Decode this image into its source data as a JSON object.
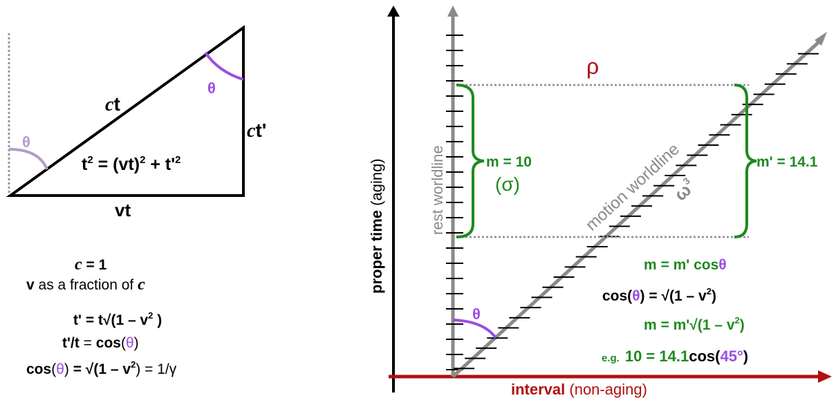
{
  "triangle": {
    "c_symbol": "c",
    "hypotenuse_t": "t",
    "vertical_t": "t'",
    "base_label": "vt",
    "angle_top": "θ",
    "angle_bottom": "θ",
    "equation_lhs": "t",
    "equation_vt": "(vt)",
    "equation_plus": " + t'",
    "equation_eq": " = ",
    "sup2": "2"
  },
  "formulas": {
    "c_eq": "c",
    "c_val": " = 1",
    "v_label": "v",
    "v_text": " as a fraction of ",
    "v_c": "c",
    "t_prime_lhs": "t'",
    "t_prime_rhs": " = t√(1 – v",
    "close": ")",
    "tt_lhs": "t'/t",
    "tt_eq": " = ",
    "cos": "cos",
    "open": "(",
    "theta": "θ",
    "cos_close": ")",
    "cos_rhs": " = √(1 – v",
    "gamma": ") = 1/γ"
  },
  "spacetime": {
    "rho": "ρ",
    "rest_worldline": "rest worldline",
    "motion_worldline": "motion worldline",
    "omega": "ω",
    "omega_sub": "3",
    "m_label": "m = 10",
    "sigma": "(σ)",
    "m_prime_label": "m' = 14.1",
    "theta": "θ",
    "y_axis_bold": "proper time",
    "y_axis_normal": " (aging)",
    "x_axis_bold": "interval",
    "x_axis_normal": " (non-aging)",
    "eq1": "m = m' cos",
    "eq1_theta": "θ",
    "eq2_a": "cos(",
    "eq2_theta": "θ",
    "eq2_b": ") = √(1 – v",
    "eq2_c": ")",
    "eq3": "m = m'√(1 – v",
    "eq3_c": ")",
    "eg": "e.g.",
    "eg_a": "10 = 14.1",
    "eg_cos": "cos(",
    "eg_deg": "45°",
    "eg_close": ")",
    "sup2": "2"
  },
  "colors": {
    "purple": "#9b4fe0",
    "green": "#1f8a1f",
    "red": "#b01010",
    "gray": "#8a8a8a",
    "light_purple": "#b39ccc"
  }
}
